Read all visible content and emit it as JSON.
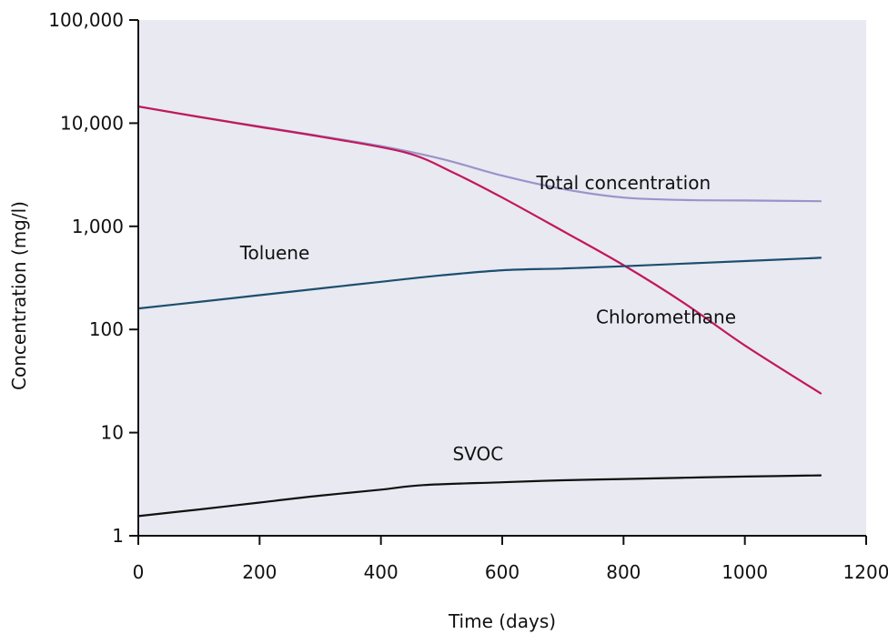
{
  "chart_data": {
    "type": "line",
    "xlabel": "Time (days)",
    "ylabel": "Concentration (mg/l)",
    "xlim": [
      0,
      1200
    ],
    "ylim": [
      1,
      100000
    ],
    "yscale": "log",
    "xticks": [
      0,
      200,
      400,
      600,
      800,
      1000,
      1200
    ],
    "xtick_labels": [
      "0",
      "200",
      "400",
      "600",
      "800",
      "1000",
      "1200"
    ],
    "yticks": [
      1,
      10,
      100,
      1000,
      10000,
      100000
    ],
    "ytick_labels": [
      "1",
      "10",
      "100",
      "1,000",
      "10,000",
      "100,000"
    ],
    "grid": false,
    "background": "#e9e9f2",
    "series": [
      {
        "name": "Total concentration",
        "color": "#9b93c9",
        "x": [
          0,
          100,
          200,
          300,
          400,
          500,
          600,
          700,
          800,
          900,
          1000,
          1125
        ],
        "y": [
          14500,
          11500,
          9300,
          7500,
          6000,
          4500,
          3100,
          2300,
          1900,
          1800,
          1780,
          1750
        ]
      },
      {
        "name": "Chloromethane",
        "color": "#c2185b",
        "x": [
          0,
          100,
          200,
          300,
          440,
          520,
          600,
          700,
          800,
          900,
          1000,
          1125
        ],
        "y": [
          14500,
          11500,
          9200,
          7400,
          5200,
          3300,
          1900,
          900,
          420,
          180,
          70,
          24
        ]
      },
      {
        "name": "Toluene",
        "color": "#1d4f6e",
        "x": [
          0,
          100,
          200,
          300,
          400,
          500,
          600,
          700,
          800,
          900,
          1000,
          1125
        ],
        "y": [
          160,
          185,
          215,
          250,
          290,
          335,
          375,
          390,
          410,
          435,
          460,
          495
        ]
      },
      {
        "name": "SVOC",
        "color": "#111111",
        "x": [
          0,
          100,
          200,
          300,
          400,
          470,
          600,
          700,
          800,
          900,
          1000,
          1125
        ],
        "y": [
          1.55,
          1.8,
          2.1,
          2.45,
          2.8,
          3.1,
          3.3,
          3.45,
          3.55,
          3.65,
          3.75,
          3.85
        ]
      }
    ],
    "annotations": [
      {
        "text": "Total concentration",
        "x": 800,
        "y": 2300
      },
      {
        "text": "Toluene",
        "x": 225,
        "y": 480
      },
      {
        "text": "Chloromethane",
        "x": 870,
        "y": 115
      },
      {
        "text": "SVOC",
        "x": 560,
        "y": 5.4
      }
    ]
  }
}
